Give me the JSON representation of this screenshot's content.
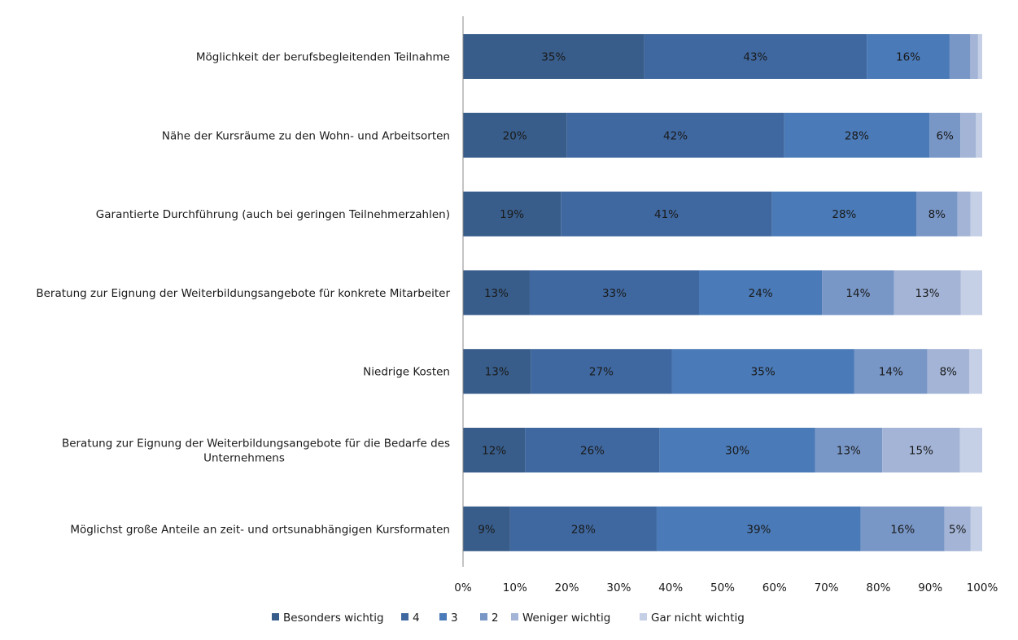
{
  "chart_data": {
    "type": "bar",
    "orientation": "horizontal",
    "stacked": true,
    "normalized": true,
    "categories": [
      "Möglichkeit der berufsbegleitenden Teilnahme",
      "Nähe der Kursräume zu den Wohn- und Arbeitsorten",
      "Garantierte Durchführung (auch bei geringen Teilnehmerzahlen)",
      "Beratung zur Eignung der Weiterbildungsangebote für konkrete Mitarbeiter",
      "Niedrige Kosten",
      "Beratung zur Eignung der Weiterbildungsangebote für die Bedarfe des Unternehmens",
      "Möglichst große Anteile an zeit- und ortsunabhängigen Kursformaten"
    ],
    "series": [
      {
        "name": "Besonders wichtig",
        "color": "#385d8a",
        "values": [
          35,
          20,
          19,
          13,
          13,
          12,
          9
        ]
      },
      {
        "name": "4",
        "color": "#3f68a0",
        "values": [
          43,
          42,
          41,
          33,
          27,
          26,
          28
        ]
      },
      {
        "name": "3",
        "color": "#4a7ab7",
        "values": [
          16,
          28,
          28,
          24,
          35,
          30,
          39
        ]
      },
      {
        "name": "2",
        "color": "#7896c6",
        "values": [
          4,
          6,
          8,
          14,
          14,
          13,
          16
        ]
      },
      {
        "name": "Weniger wichtig",
        "color": "#a3b4d6",
        "values": [
          1.5,
          3,
          2.5,
          13,
          8,
          15,
          5
        ]
      },
      {
        "name": "Gar nicht wichtig",
        "color": "#c5cfe5",
        "values": [
          0.8,
          1.2,
          2.3,
          4.2,
          2.5,
          4.3,
          2.2
        ]
      }
    ],
    "data_labels": [
      [
        "35%",
        "43%",
        "16%",
        "",
        "",
        ""
      ],
      [
        "20%",
        "42%",
        "28%",
        "6%",
        "",
        ""
      ],
      [
        "19%",
        "41%",
        "28%",
        "8%",
        "",
        ""
      ],
      [
        "13%",
        "33%",
        "24%",
        "14%",
        "13%",
        ""
      ],
      [
        "13%",
        "27%",
        "35%",
        "14%",
        "8%",
        ""
      ],
      [
        "12%",
        "26%",
        "30%",
        "13%",
        "15%",
        ""
      ],
      [
        "9%",
        "28%",
        "39%",
        "16%",
        "5%",
        ""
      ]
    ],
    "x_ticks": [
      "0%",
      "10%",
      "20%",
      "30%",
      "40%",
      "50%",
      "60%",
      "70%",
      "80%",
      "90%",
      "100%"
    ],
    "xlim": [
      0,
      100
    ],
    "title": "",
    "xlabel": "",
    "ylabel": "",
    "grid": false,
    "legend_position": "bottom"
  }
}
